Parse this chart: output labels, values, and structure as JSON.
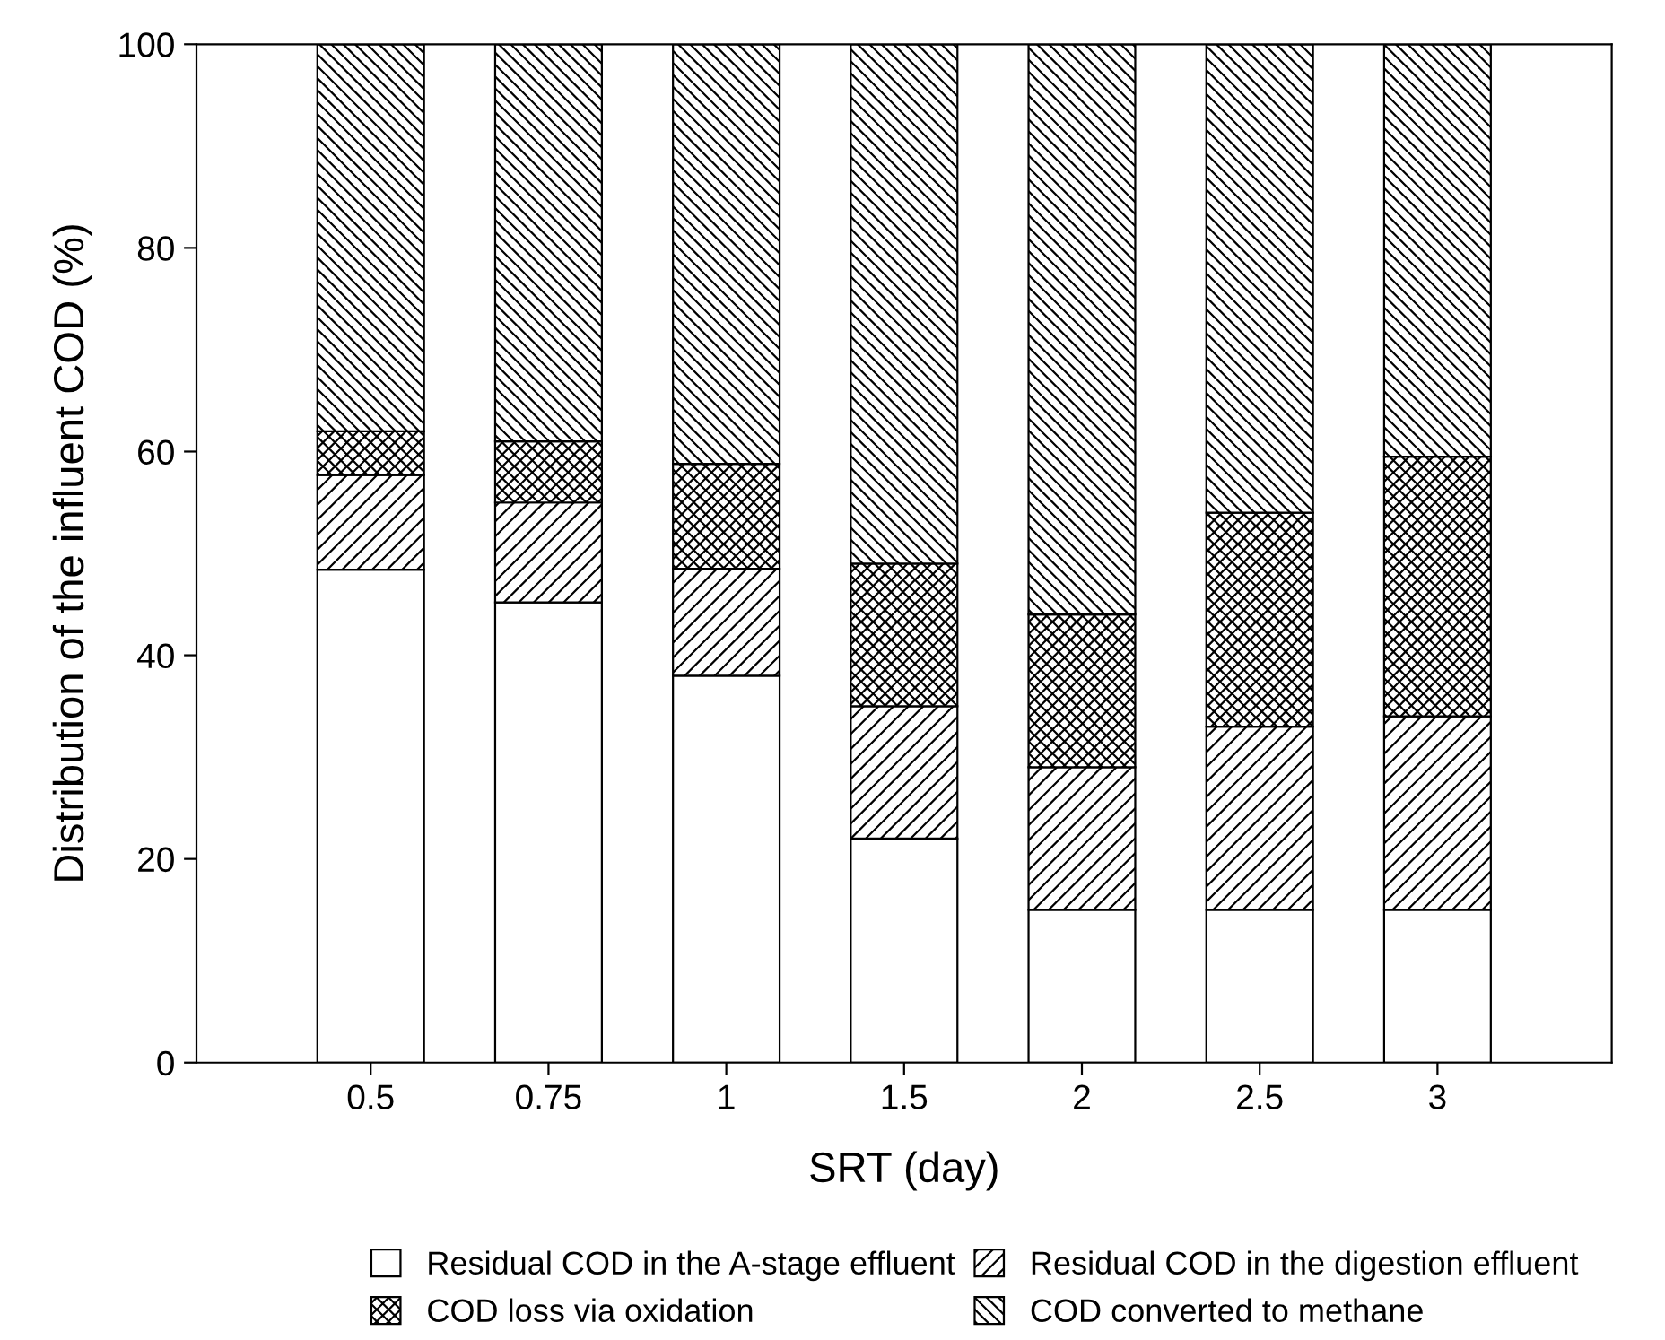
{
  "chart_data": {
    "type": "bar",
    "stacked": true,
    "xlabel": "SRT (day)",
    "ylabel": "Distribution of the influent COD (%)",
    "categories": [
      "0.5",
      "0.75",
      "1",
      "1.5",
      "2",
      "2.5",
      "3"
    ],
    "series": [
      {
        "name": "Residual COD in the A-stage effluent",
        "color": "#ffffff",
        "values": [
          48.4,
          45.2,
          38,
          22,
          15,
          15,
          15
        ]
      },
      {
        "name": "Residual COD in the digestion effluent",
        "color": "#000000",
        "values": [
          9.3,
          9.8,
          10.5,
          13,
          14,
          18,
          19
        ]
      },
      {
        "name": "COD loss via oxidation",
        "color": "#000000",
        "values": [
          4.3,
          6,
          10.3,
          14,
          15,
          21,
          25.5
        ]
      },
      {
        "name": "COD converted to methane",
        "color": "#000000",
        "values": [
          38,
          39,
          41.2,
          51,
          56,
          46,
          40.5
        ]
      }
    ],
    "ylim": [
      0,
      100
    ],
    "yticks": [
      0,
      20,
      40,
      60,
      80,
      100
    ],
    "grid": false,
    "legend": "bottom"
  }
}
